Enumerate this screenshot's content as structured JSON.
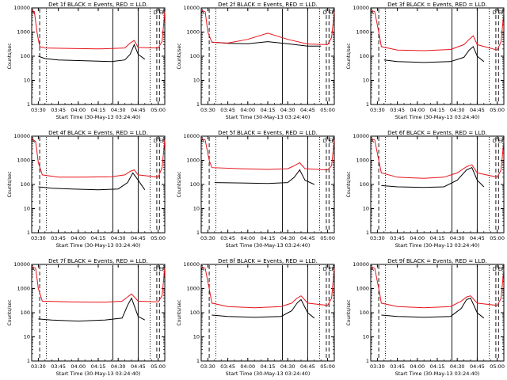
{
  "colors": {
    "events": "#000000",
    "lld": "#e8141b",
    "axes": "#000000",
    "background": "#ffffff"
  },
  "xlabel": "Start Time (30-May-13 03:24:40)",
  "ylabel": "Counts/sec",
  "markers": [
    "A",
    "D",
    "E",
    "F"
  ],
  "chart_data": [
    {
      "type": "line",
      "title": "Det 1f BLACK = Events, RED = LLD.",
      "xlabel": "Start Time (30-May-13 03:24:40)",
      "ylabel": "Counts/sec",
      "x_ticks": [
        "03:30",
        "03:45",
        "04:00",
        "04:15",
        "04:30",
        "04:45",
        "05:00"
      ],
      "y_scale": "log",
      "y_ticks": [
        "1",
        "10",
        "100",
        "1000",
        "10000"
      ],
      "ylim": [
        1,
        10000
      ],
      "x_range_minutes": [
        0,
        100
      ],
      "series": [
        {
          "color": "black",
          "points": [
            [
              5,
              100
            ],
            [
              10,
              80
            ],
            [
              20,
              70
            ],
            [
              40,
              65
            ],
            [
              60,
              60
            ],
            [
              70,
              70
            ],
            [
              74,
              120
            ],
            [
              77,
              300
            ],
            [
              80,
              120
            ],
            [
              85,
              75
            ]
          ]
        },
        {
          "color": "red",
          "points": [
            [
              0,
              8000
            ],
            [
              2,
              7000
            ],
            [
              4,
              1000
            ],
            [
              6,
              250
            ],
            [
              10,
              220
            ],
            [
              30,
              210
            ],
            [
              50,
              200
            ],
            [
              70,
              220
            ],
            [
              74,
              350
            ],
            [
              77,
              450
            ],
            [
              80,
              230
            ],
            [
              95,
              220
            ],
            [
              98,
              400
            ],
            [
              100,
              7000
            ]
          ]
        }
      ]
    },
    {
      "type": "line",
      "title": "Det 2f BLACK = Events, RED = LLD.",
      "xlabel": "Start Time (30-May-13 03:24:40)",
      "ylabel": "Counts/sec",
      "x_ticks": [
        "03:30",
        "03:45",
        "04:00",
        "04:15",
        "04:30",
        "04:45",
        "05:00"
      ],
      "y_scale": "log",
      "y_ticks": [
        "1",
        "10",
        "100",
        "1000",
        "10000"
      ],
      "ylim": [
        1,
        10000
      ],
      "x_range_minutes": [
        0,
        100
      ],
      "series": [
        {
          "color": "black",
          "points": [
            [
              8,
              380
            ],
            [
              20,
              340
            ],
            [
              35,
              330
            ],
            [
              50,
              400
            ],
            [
              65,
              330
            ],
            [
              80,
              260
            ],
            [
              90,
              260
            ]
          ]
        },
        {
          "color": "red",
          "points": [
            [
              0,
              8000
            ],
            [
              3,
              7000
            ],
            [
              5,
              1000
            ],
            [
              8,
              380
            ],
            [
              20,
              350
            ],
            [
              35,
              500
            ],
            [
              50,
              900
            ],
            [
              65,
              500
            ],
            [
              80,
              320
            ],
            [
              95,
              300
            ],
            [
              98,
              600
            ],
            [
              100,
              7000
            ]
          ]
        }
      ]
    },
    {
      "type": "line",
      "title": "Det 3f BLACK = Events, RED = LLD.",
      "xlabel": "Start Time (30-May-13 03:24:40)",
      "ylabel": "Counts/sec",
      "x_ticks": [
        "03:30",
        "03:45",
        "04:00",
        "04:15",
        "04:30",
        "04:45",
        "05:00"
      ],
      "y_scale": "log",
      "y_ticks": [
        "1",
        "10",
        "100",
        "1000",
        "10000"
      ],
      "ylim": [
        1,
        10000
      ],
      "x_range_minutes": [
        0,
        100
      ],
      "series": [
        {
          "color": "black",
          "points": [
            [
              10,
              70
            ],
            [
              20,
              60
            ],
            [
              40,
              55
            ],
            [
              60,
              60
            ],
            [
              70,
              90
            ],
            [
              74,
              180
            ],
            [
              77,
              250
            ],
            [
              80,
              100
            ],
            [
              85,
              60
            ]
          ]
        },
        {
          "color": "red",
          "points": [
            [
              0,
              8000
            ],
            [
              3,
              7000
            ],
            [
              6,
              1000
            ],
            [
              8,
              250
            ],
            [
              20,
              180
            ],
            [
              40,
              170
            ],
            [
              60,
              190
            ],
            [
              70,
              300
            ],
            [
              74,
              500
            ],
            [
              77,
              700
            ],
            [
              80,
              300
            ],
            [
              95,
              180
            ],
            [
              98,
              400
            ],
            [
              100,
              7000
            ]
          ]
        }
      ]
    },
    {
      "type": "line",
      "title": "Det 4f BLACK = Events, RED = LLD.",
      "xlabel": "Start Time (30-May-13 03:24:40)",
      "ylabel": "Counts/sec",
      "x_ticks": [
        "03:30",
        "03:45",
        "04:00",
        "04:15",
        "04:30",
        "04:45",
        "05:00"
      ],
      "y_scale": "log",
      "y_ticks": [
        "1",
        "10",
        "100",
        "1000",
        "10000"
      ],
      "ylim": [
        1,
        10000
      ],
      "x_range_minutes": [
        0,
        100
      ],
      "series": [
        {
          "color": "black",
          "points": [
            [
              5,
              80
            ],
            [
              15,
              70
            ],
            [
              30,
              65
            ],
            [
              50,
              60
            ],
            [
              65,
              65
            ],
            [
              72,
              120
            ],
            [
              76,
              300
            ],
            [
              80,
              150
            ],
            [
              85,
              60
            ]
          ]
        },
        {
          "color": "red",
          "points": [
            [
              0,
              8000
            ],
            [
              3,
              6000
            ],
            [
              5,
              800
            ],
            [
              8,
              250
            ],
            [
              20,
              200
            ],
            [
              40,
              200
            ],
            [
              60,
              210
            ],
            [
              70,
              250
            ],
            [
              74,
              350
            ],
            [
              77,
              400
            ],
            [
              80,
              250
            ],
            [
              95,
              200
            ],
            [
              98,
              500
            ],
            [
              100,
              7000
            ]
          ]
        }
      ]
    },
    {
      "type": "line",
      "title": "Det 5f BLACK = Events, RED = LLD.",
      "xlabel": "Start Time (30-May-13 03:24:40)",
      "ylabel": "Counts/sec",
      "x_ticks": [
        "03:30",
        "03:45",
        "04:00",
        "04:15",
        "04:30",
        "04:45",
        "05:00"
      ],
      "y_scale": "log",
      "y_ticks": [
        "1",
        "10",
        "100",
        "1000",
        "10000"
      ],
      "ylim": [
        1,
        10000
      ],
      "x_range_minutes": [
        0,
        100
      ],
      "series": [
        {
          "color": "black",
          "points": [
            [
              10,
              120
            ],
            [
              30,
              115
            ],
            [
              50,
              110
            ],
            [
              65,
              120
            ],
            [
              70,
              200
            ],
            [
              74,
              400
            ],
            [
              78,
              150
            ],
            [
              85,
              100
            ]
          ]
        },
        {
          "color": "red",
          "points": [
            [
              0,
              8000
            ],
            [
              3,
              7000
            ],
            [
              6,
              1000
            ],
            [
              8,
              500
            ],
            [
              30,
              450
            ],
            [
              50,
              420
            ],
            [
              65,
              450
            ],
            [
              70,
              600
            ],
            [
              74,
              800
            ],
            [
              78,
              450
            ],
            [
              95,
              400
            ],
            [
              98,
              600
            ],
            [
              100,
              7000
            ]
          ]
        }
      ]
    },
    {
      "type": "line",
      "title": "Det 6f BLACK = Events, RED = LLD.",
      "xlabel": "Start Time (30-May-13 03:24:40)",
      "ylabel": "Counts/sec",
      "x_ticks": [
        "03:30",
        "03:45",
        "04:00",
        "04:15",
        "04:30",
        "04:45",
        "05:00"
      ],
      "y_scale": "log",
      "y_ticks": [
        "1",
        "10",
        "100",
        "1000",
        "10000"
      ],
      "ylim": [
        1,
        10000
      ],
      "x_range_minutes": [
        0,
        100
      ],
      "series": [
        {
          "color": "black",
          "points": [
            [
              8,
              90
            ],
            [
              20,
              80
            ],
            [
              40,
              75
            ],
            [
              55,
              80
            ],
            [
              65,
              150
            ],
            [
              72,
              400
            ],
            [
              76,
              500
            ],
            [
              80,
              150
            ],
            [
              85,
              80
            ]
          ]
        },
        {
          "color": "red",
          "points": [
            [
              0,
              8000
            ],
            [
              3,
              7000
            ],
            [
              6,
              1000
            ],
            [
              8,
              300
            ],
            [
              20,
              200
            ],
            [
              40,
              180
            ],
            [
              55,
              200
            ],
            [
              65,
              300
            ],
            [
              72,
              550
            ],
            [
              76,
              650
            ],
            [
              80,
              300
            ],
            [
              95,
              200
            ],
            [
              98,
              400
            ],
            [
              100,
              7000
            ]
          ]
        }
      ]
    },
    {
      "type": "line",
      "title": "Det 7f BLACK = Events, RED = LLD.",
      "xlabel": "Start Time (30-May-13 03:24:40)",
      "ylabel": "Counts/sec",
      "x_ticks": [
        "03:30",
        "03:45",
        "04:00",
        "04:15",
        "04:30",
        "04:45",
        "05:00"
      ],
      "y_scale": "log",
      "y_ticks": [
        "1",
        "10",
        "100",
        "1000",
        "10000"
      ],
      "ylim": [
        1,
        10000
      ],
      "x_range_minutes": [
        0,
        100
      ],
      "series": [
        {
          "color": "black",
          "points": [
            [
              5,
              55
            ],
            [
              15,
              50
            ],
            [
              35,
              45
            ],
            [
              55,
              50
            ],
            [
              68,
              60
            ],
            [
              72,
              200
            ],
            [
              75,
              400
            ],
            [
              80,
              70
            ],
            [
              85,
              50
            ]
          ]
        },
        {
          "color": "red",
          "points": [
            [
              0,
              8000
            ],
            [
              3,
              7000
            ],
            [
              5,
              1000
            ],
            [
              8,
              300
            ],
            [
              30,
              280
            ],
            [
              55,
              270
            ],
            [
              68,
              300
            ],
            [
              72,
              450
            ],
            [
              75,
              600
            ],
            [
              80,
              300
            ],
            [
              95,
              280
            ],
            [
              98,
              500
            ],
            [
              100,
              7000
            ]
          ]
        }
      ]
    },
    {
      "type": "line",
      "title": "Det 8f BLACK = Events, RED = LLD.",
      "xlabel": "Start Time (30-May-13 03:24:40)",
      "ylabel": "Counts/sec",
      "x_ticks": [
        "03:30",
        "03:45",
        "04:00",
        "04:15",
        "04:30",
        "04:45",
        "05:00"
      ],
      "y_scale": "log",
      "y_ticks": [
        "1",
        "10",
        "100",
        "1000",
        "10000"
      ],
      "ylim": [
        1,
        10000
      ],
      "x_range_minutes": [
        0,
        100
      ],
      "series": [
        {
          "color": "black",
          "points": [
            [
              8,
              80
            ],
            [
              20,
              70
            ],
            [
              40,
              65
            ],
            [
              60,
              70
            ],
            [
              68,
              120
            ],
            [
              72,
              250
            ],
            [
              75,
              350
            ],
            [
              80,
              100
            ],
            [
              85,
              60
            ]
          ]
        },
        {
          "color": "red",
          "points": [
            [
              0,
              8000
            ],
            [
              3,
              7000
            ],
            [
              6,
              1000
            ],
            [
              8,
              250
            ],
            [
              20,
              180
            ],
            [
              40,
              160
            ],
            [
              60,
              180
            ],
            [
              68,
              250
            ],
            [
              72,
              400
            ],
            [
              75,
              500
            ],
            [
              80,
              250
            ],
            [
              95,
              200
            ],
            [
              98,
              400
            ],
            [
              100,
              7000
            ]
          ]
        }
      ]
    },
    {
      "type": "line",
      "title": "Det 9f BLACK = Events, RED = LLD.",
      "xlabel": "Start Time (30-May-13 03:24:40)",
      "ylabel": "Counts/sec",
      "x_ticks": [
        "03:30",
        "03:45",
        "04:00",
        "04:15",
        "04:30",
        "04:45",
        "05:00"
      ],
      "y_scale": "log",
      "y_ticks": [
        "1",
        "10",
        "100",
        "1000",
        "10000"
      ],
      "ylim": [
        1,
        10000
      ],
      "x_range_minutes": [
        0,
        100
      ],
      "series": [
        {
          "color": "black",
          "points": [
            [
              8,
              80
            ],
            [
              20,
              70
            ],
            [
              40,
              65
            ],
            [
              60,
              70
            ],
            [
              68,
              150
            ],
            [
              72,
              350
            ],
            [
              75,
              400
            ],
            [
              80,
              100
            ],
            [
              85,
              60
            ]
          ]
        },
        {
          "color": "red",
          "points": [
            [
              0,
              8000
            ],
            [
              3,
              7000
            ],
            [
              6,
              1000
            ],
            [
              8,
              250
            ],
            [
              20,
              180
            ],
            [
              40,
              160
            ],
            [
              60,
              180
            ],
            [
              68,
              300
            ],
            [
              72,
              450
            ],
            [
              75,
              500
            ],
            [
              80,
              250
            ],
            [
              95,
              200
            ],
            [
              98,
              400
            ],
            [
              100,
              7000
            ]
          ]
        }
      ]
    }
  ]
}
